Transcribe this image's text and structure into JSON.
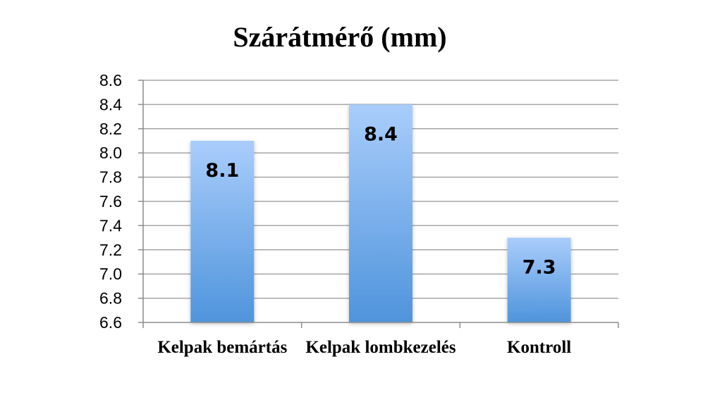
{
  "chart_data": {
    "type": "bar",
    "title": "Szárátmérő (mm)",
    "categories": [
      "Kelpak bemártás",
      "Kelpak lombkezelés",
      "Kontroll"
    ],
    "values": [
      8.1,
      8.4,
      7.3
    ],
    "data_labels": [
      "8.1",
      "8.4",
      "7.3"
    ],
    "ylim": [
      6.6,
      8.6
    ],
    "y_ticks": [
      "6.6",
      "6.8",
      "7.0",
      "7.2",
      "7.4",
      "7.6",
      "7.8",
      "8.0",
      "8.2",
      "8.4",
      "8.6"
    ],
    "xlabel": "",
    "ylabel": "",
    "grid": true,
    "legend": "none",
    "bar_color_top": "#a9cdfb",
    "bar_color_bottom": "#4f94dc"
  }
}
